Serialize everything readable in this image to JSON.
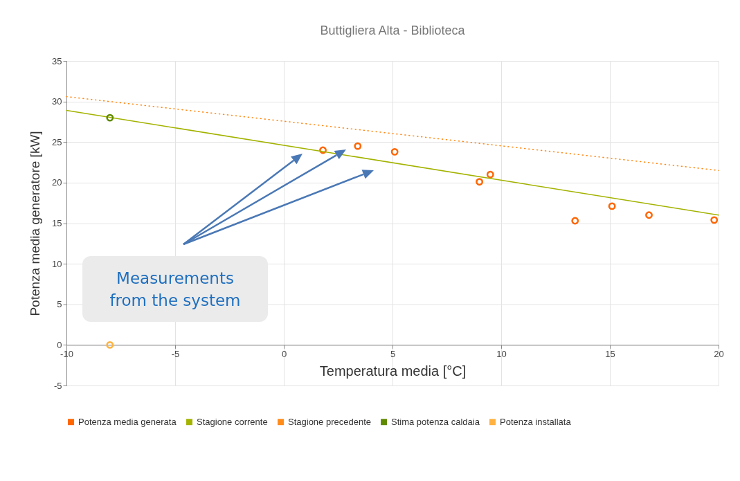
{
  "chart_data": {
    "type": "scatter",
    "title": "Buttigliera Alta - Biblioteca",
    "xlabel": "Temperatura media [°C]",
    "ylabel": "Potenza media generatore [kW]",
    "xlim": [
      -10,
      20
    ],
    "xticks": [
      -10,
      -5,
      0,
      5,
      10,
      15,
      20
    ],
    "ylim": [
      -5,
      35
    ],
    "yticks": [
      -5,
      0,
      5,
      10,
      15,
      20,
      25,
      30,
      35
    ],
    "grid": true,
    "legend": "bottom",
    "annotations": [
      "Measurements from the system"
    ],
    "series": [
      {
        "name": "Potenza media generata",
        "marker": "circle",
        "color": "#ff6600",
        "x": [
          1.8,
          3.4,
          5.1,
          9.0,
          9.5,
          13.4,
          15.1,
          16.8,
          19.8
        ],
        "values": [
          24.0,
          24.5,
          23.8,
          20.1,
          21.0,
          15.3,
          17.1,
          16.0,
          15.4
        ]
      },
      {
        "name": "Stagione corrente",
        "type": "line",
        "color": "#a3b300",
        "x": [
          -10,
          20
        ],
        "values": [
          28.9,
          16.0
        ]
      },
      {
        "name": "Stagione precedente",
        "type": "line",
        "line_style": "dotted",
        "color": "#ff8c1a",
        "x": [
          -10,
          20
        ],
        "values": [
          30.6,
          21.5
        ]
      },
      {
        "name": "Stima potenza caldaia",
        "marker": "circle",
        "color": "#5f8a00",
        "x": [
          -8
        ],
        "values": [
          28.0
        ]
      },
      {
        "name": "Potenza installata",
        "marker": "circle",
        "color": "#ffb23f",
        "x": [
          -8
        ],
        "values": [
          0
        ]
      }
    ]
  }
}
